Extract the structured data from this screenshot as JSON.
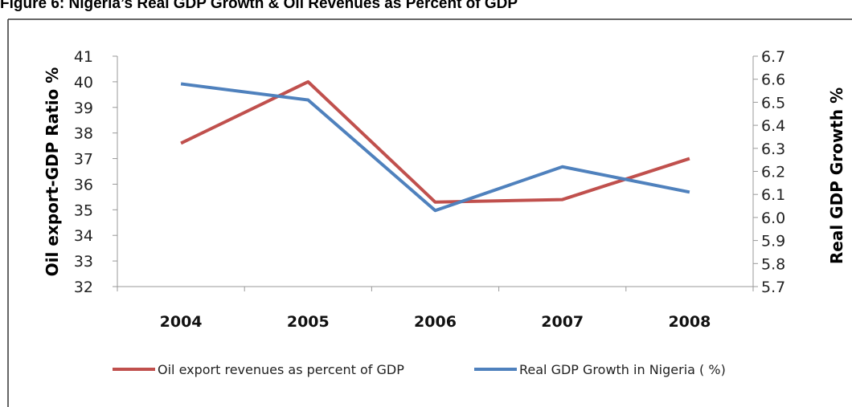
{
  "figure_title": "Figure 6: Nigeria’s Real GDP Growth & Oil Revenues as Percent of GDP",
  "colors": {
    "oil_series": "#C0504D",
    "gdp_series": "#4F81BD",
    "axis": "#999999",
    "frame": "#333333"
  },
  "chart_data": {
    "type": "line",
    "title": "",
    "categories": [
      "2004",
      "2005",
      "2006",
      "2007",
      "2008"
    ],
    "ylabel_left": "Oil export-GDP Ratio %",
    "ylabel_right": "Real GDP Growth %",
    "ylim_left": [
      32,
      41
    ],
    "ylim_right": [
      5.7,
      6.7
    ],
    "yticks_left": [
      "32",
      "33",
      "34",
      "35",
      "36",
      "37",
      "38",
      "39",
      "40",
      "41"
    ],
    "yticks_right": [
      "5.7",
      "5.8",
      "5.9",
      "6.0",
      "6.1",
      "6.2",
      "6.3",
      "6.4",
      "6.5",
      "6.6",
      "6.7"
    ],
    "grid": false,
    "legend_position": "bottom",
    "series": [
      {
        "name": "Oil export revenues as percent of GDP",
        "axis": "left",
        "values": [
          37.6,
          40.0,
          35.3,
          35.4,
          37.0
        ]
      },
      {
        "name": "Real GDP Growth in Nigeria ( %)",
        "axis": "right",
        "values": [
          6.58,
          6.51,
          6.03,
          6.22,
          6.11
        ]
      }
    ]
  }
}
